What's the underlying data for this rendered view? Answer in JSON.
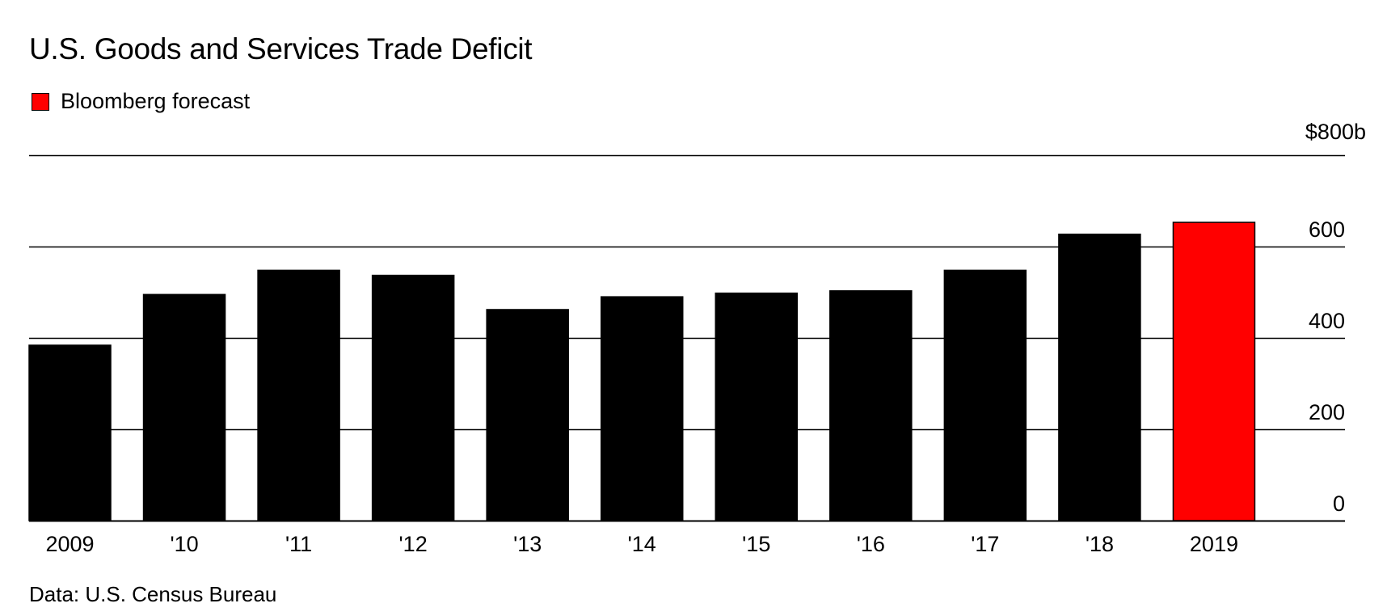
{
  "title": "U.S. Goods and Services Trade Deficit",
  "legend": {
    "label": "Bloomberg forecast",
    "color": "#ff0000"
  },
  "source": "Data: U.S. Census Bureau",
  "colors": {
    "actual": "#000000",
    "forecast": "#ff0000"
  },
  "chart_data": {
    "type": "bar",
    "title": "U.S. Goods and Services Trade Deficit",
    "categories": [
      "2009",
      "'10",
      "'11",
      "'12",
      "'13",
      "'14",
      "'15",
      "'16",
      "'17",
      "'18",
      "2019"
    ],
    "values": [
      384,
      495,
      548,
      537,
      462,
      490,
      498,
      503,
      548,
      627,
      653
    ],
    "forecast": [
      false,
      false,
      false,
      false,
      false,
      false,
      false,
      false,
      false,
      false,
      true
    ],
    "ylim": [
      0,
      800
    ],
    "yticks": [
      0,
      200,
      400,
      600,
      800
    ],
    "ytick_labels": [
      "0",
      "200",
      "400",
      "600",
      "$800b"
    ],
    "grid": true,
    "yaxis_position": "right",
    "legend_position": "top-left"
  }
}
